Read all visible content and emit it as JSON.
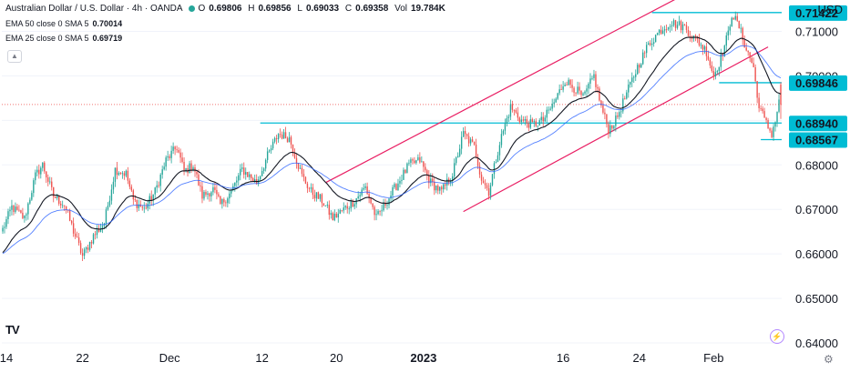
{
  "header": {
    "symbol": "Australian Dollar / U.S. Dollar · 4h · OANDA",
    "o_label": "O",
    "o": "0.69806",
    "h_label": "H",
    "h": "0.69856",
    "l_label": "L",
    "l": "0.69033",
    "c_label": "C",
    "c": "0.69358",
    "vol_label": "Vol",
    "vol": "19.784K",
    "ema50_label": "EMA 50 close 0 SMA 5",
    "ema50": "0.70014",
    "ema25_label": "EMA 25 close 0 SMA 5",
    "ema25": "0.69719"
  },
  "currency": "USD",
  "logo": "TV",
  "colors": {
    "background": "#ffffff",
    "up": "#26a69a",
    "down": "#ef5350",
    "ema25": "#131722",
    "ema50": "#2962ff",
    "level": "#00bcd4",
    "channel": "#e91e63",
    "price_line": "#ef5350",
    "axis_text": "#131722"
  },
  "icons": {
    "collapse": "chevron-up-icon",
    "flash": "flash-icon",
    "settings": "gear-icon",
    "logo": "tradingview-logo"
  },
  "chart_data": {
    "type": "candlestick",
    "ylim": [
      0.64,
      0.715
    ],
    "y_ticks": [
      0.64,
      0.65,
      0.66,
      0.67,
      0.68,
      0.69,
      0.7,
      0.71
    ],
    "y_tick_labels": [
      "0.64000",
      "0.65000",
      "0.66000",
      "0.67000",
      "0.68000",
      "0.69000",
      "0.70000",
      "0.71000"
    ],
    "x_ticks": [
      {
        "label": "14",
        "index": 2
      },
      {
        "label": "22",
        "index": 44
      },
      {
        "label": "Dec",
        "index": 92
      },
      {
        "label": "12",
        "index": 143
      },
      {
        "label": "20",
        "index": 184
      },
      {
        "label": "2023",
        "index": 232
      },
      {
        "label": "16",
        "index": 309
      },
      {
        "label": "24",
        "index": 351
      },
      {
        "label": "Feb",
        "index": 392
      }
    ],
    "n_bars": 430,
    "key_points": [
      [
        0,
        0.6655
      ],
      [
        5,
        0.6705
      ],
      [
        12,
        0.668
      ],
      [
        18,
        0.6775
      ],
      [
        22,
        0.68
      ],
      [
        28,
        0.673
      ],
      [
        34,
        0.671
      ],
      [
        40,
        0.664
      ],
      [
        44,
        0.6595
      ],
      [
        50,
        0.664
      ],
      [
        56,
        0.667
      ],
      [
        62,
        0.679
      ],
      [
        68,
        0.678
      ],
      [
        72,
        0.672
      ],
      [
        78,
        0.67
      ],
      [
        84,
        0.674
      ],
      [
        90,
        0.681
      ],
      [
        96,
        0.684
      ],
      [
        100,
        0.6785
      ],
      [
        105,
        0.68
      ],
      [
        110,
        0.673
      ],
      [
        116,
        0.6745
      ],
      [
        120,
        0.671
      ],
      [
        126,
        0.674
      ],
      [
        132,
        0.679
      ],
      [
        140,
        0.676
      ],
      [
        146,
        0.682
      ],
      [
        152,
        0.687
      ],
      [
        158,
        0.686
      ],
      [
        165,
        0.6775
      ],
      [
        170,
        0.674
      ],
      [
        176,
        0.672
      ],
      [
        182,
        0.668
      ],
      [
        188,
        0.67
      ],
      [
        194,
        0.672
      ],
      [
        200,
        0.675
      ],
      [
        206,
        0.668
      ],
      [
        212,
        0.672
      ],
      [
        218,
        0.676
      ],
      [
        224,
        0.68
      ],
      [
        230,
        0.681
      ],
      [
        236,
        0.676
      ],
      [
        242,
        0.674
      ],
      [
        248,
        0.678
      ],
      [
        254,
        0.687
      ],
      [
        260,
        0.684
      ],
      [
        264,
        0.677
      ],
      [
        268,
        0.674
      ],
      [
        274,
        0.685
      ],
      [
        280,
        0.693
      ],
      [
        286,
        0.69
      ],
      [
        292,
        0.689
      ],
      [
        298,
        0.69
      ],
      [
        304,
        0.694
      ],
      [
        310,
        0.699
      ],
      [
        316,
        0.697
      ],
      [
        320,
        0.695
      ],
      [
        326,
        0.7
      ],
      [
        330,
        0.693
      ],
      [
        334,
        0.688
      ],
      [
        338,
        0.69
      ],
      [
        344,
        0.696
      ],
      [
        350,
        0.702
      ],
      [
        356,
        0.707
      ],
      [
        362,
        0.71
      ],
      [
        368,
        0.712
      ],
      [
        372,
        0.7115
      ],
      [
        376,
        0.711
      ],
      [
        380,
        0.709
      ],
      [
        384,
        0.7075
      ],
      [
        388,
        0.7055
      ],
      [
        392,
        0.7
      ],
      [
        396,
        0.704
      ],
      [
        400,
        0.7095
      ],
      [
        402,
        0.714
      ],
      [
        406,
        0.711
      ],
      [
        410,
        0.706
      ],
      [
        414,
        0.702
      ],
      [
        416,
        0.695
      ],
      [
        420,
        0.69
      ],
      [
        424,
        0.687
      ],
      [
        426,
        0.69
      ],
      [
        428,
        0.694
      ],
      [
        429,
        0.6936
      ]
    ],
    "last": {
      "open": 0.69806,
      "high": 0.69856,
      "low": 0.69033,
      "close": 0.69358
    },
    "levels": [
      {
        "value": 0.71422,
        "label": "0.71422",
        "from_index": 358
      },
      {
        "value": 0.69846,
        "label": "0.69846",
        "from_index": 395
      },
      {
        "value": 0.6894,
        "label": "0.68940",
        "from_index": 142
      },
      {
        "value": 0.68567,
        "label": "0.68567",
        "from_index": 418
      }
    ],
    "channel": [
      {
        "points": [
          [
            178,
            0.676
          ],
          [
            412,
            0.726
          ]
        ]
      },
      {
        "points": [
          [
            254,
            0.6695
          ],
          [
            422,
            0.7065
          ]
        ]
      }
    ],
    "price_line": 0.69358,
    "legend": "top-left"
  }
}
